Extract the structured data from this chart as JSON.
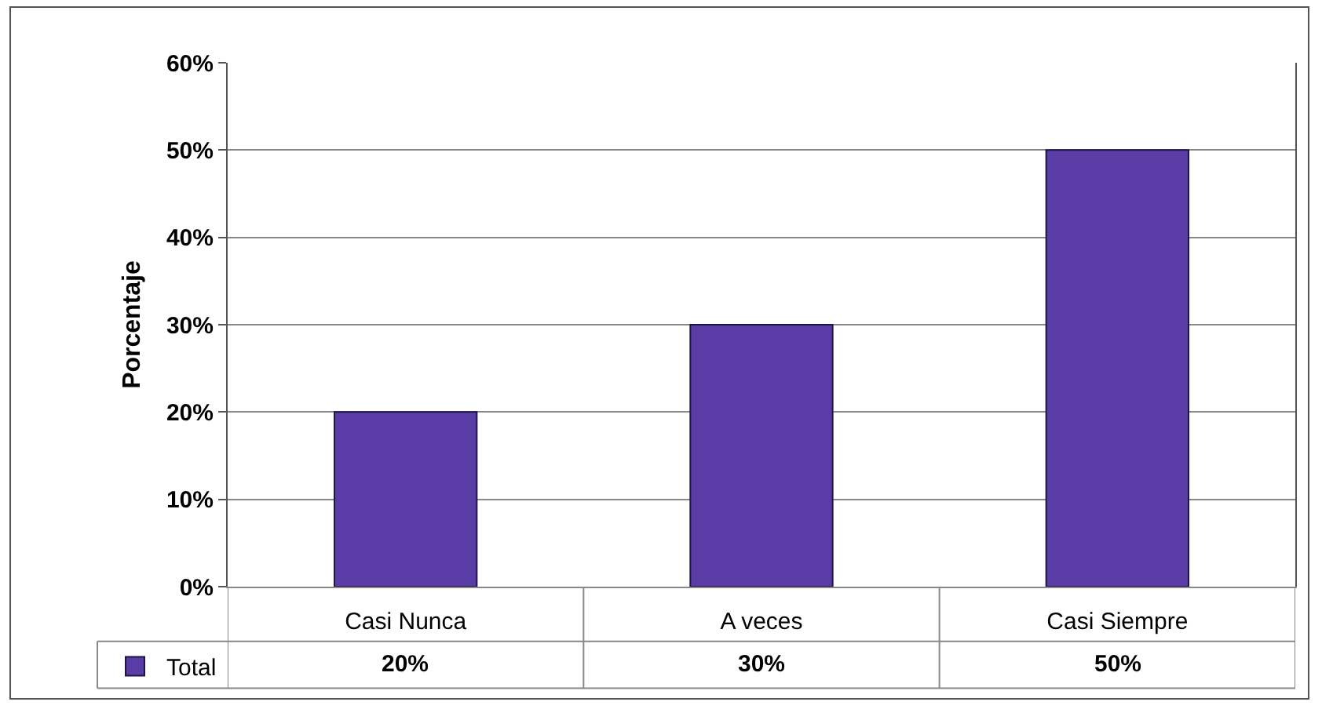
{
  "chart_data": {
    "type": "bar",
    "ylabel": "Porcentaje",
    "categories": [
      "Casi Nunca",
      "A veces",
      "Casi Siempre"
    ],
    "series": [
      {
        "name": "Total",
        "color": "#5a3ca6",
        "values": [
          20,
          30,
          50
        ],
        "value_labels": [
          "20%",
          "30%",
          "50%"
        ]
      }
    ],
    "ylim": [
      0,
      60
    ],
    "yticks": [
      {
        "value": 0,
        "label": "0%"
      },
      {
        "value": 10,
        "label": "10%"
      },
      {
        "value": 20,
        "label": "20%"
      },
      {
        "value": 30,
        "label": "30%"
      },
      {
        "value": 40,
        "label": "40%"
      },
      {
        "value": 50,
        "label": "50%"
      },
      {
        "value": 60,
        "label": "60%"
      }
    ],
    "grid": "y",
    "legend": "bottom left"
  }
}
